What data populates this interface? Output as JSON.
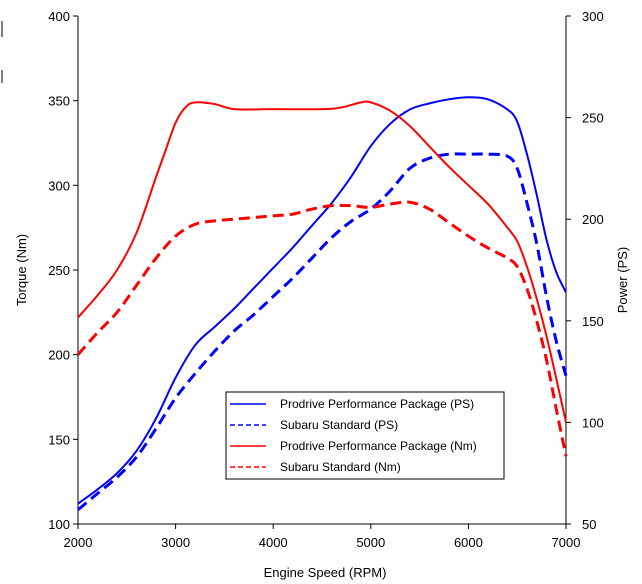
{
  "chart_data": {
    "type": "line",
    "xlabel": "Engine Speed (RPM)",
    "ylabel": "Torque (Nm)",
    "y2label": "Power (PS)",
    "xlim": [
      2000,
      7000
    ],
    "ylim": [
      100,
      400
    ],
    "y2lim": [
      50,
      300
    ],
    "x_ticks": [
      "2000",
      "3000",
      "4000",
      "5000",
      "6000",
      "7000"
    ],
    "y_ticks": [
      "100",
      "150",
      "200",
      "250",
      "300",
      "350",
      "400"
    ],
    "y2_ticks": [
      "50",
      "100",
      "150",
      "200",
      "250",
      "300"
    ],
    "grid": false,
    "legend_position": "bottom-center",
    "series": [
      {
        "name": "Prodrive Performance Package (PS)",
        "axis": "right",
        "color": "#0000ff",
        "dash": "solid",
        "points": [
          [
            2000,
            60
          ],
          [
            2200,
            67
          ],
          [
            2400,
            75
          ],
          [
            2600,
            86
          ],
          [
            2800,
            102
          ],
          [
            3000,
            122
          ],
          [
            3200,
            138
          ],
          [
            3400,
            147
          ],
          [
            3600,
            156
          ],
          [
            3800,
            166
          ],
          [
            4000,
            176
          ],
          [
            4200,
            186
          ],
          [
            4400,
            197
          ],
          [
            4600,
            208
          ],
          [
            4800,
            221
          ],
          [
            5000,
            236
          ],
          [
            5200,
            247
          ],
          [
            5400,
            254
          ],
          [
            5600,
            257
          ],
          [
            5800,
            259
          ],
          [
            6000,
            260
          ],
          [
            6200,
            259
          ],
          [
            6400,
            254
          ],
          [
            6500,
            248
          ],
          [
            6600,
            232
          ],
          [
            6700,
            212
          ],
          [
            6800,
            190
          ],
          [
            6900,
            174
          ],
          [
            7000,
            164
          ]
        ]
      },
      {
        "name": "Subaru Standard (PS)",
        "axis": "right",
        "color": "#0000ff",
        "dash": "dashed",
        "points": [
          [
            2000,
            57
          ],
          [
            2200,
            65
          ],
          [
            2400,
            73
          ],
          [
            2600,
            83
          ],
          [
            2800,
            97
          ],
          [
            3000,
            112
          ],
          [
            3200,
            124
          ],
          [
            3400,
            135
          ],
          [
            3600,
            145
          ],
          [
            3800,
            153
          ],
          [
            4000,
            162
          ],
          [
            4200,
            171
          ],
          [
            4400,
            181
          ],
          [
            4600,
            191
          ],
          [
            4800,
            199
          ],
          [
            5000,
            205
          ],
          [
            5200,
            214
          ],
          [
            5400,
            225
          ],
          [
            5600,
            230
          ],
          [
            5800,
            232
          ],
          [
            6000,
            232
          ],
          [
            6200,
            232
          ],
          [
            6400,
            231
          ],
          [
            6500,
            225
          ],
          [
            6600,
            208
          ],
          [
            6700,
            188
          ],
          [
            6800,
            162
          ],
          [
            6900,
            140
          ],
          [
            7000,
            123
          ]
        ]
      },
      {
        "name": "Prodrive Performance Package (Nm)",
        "axis": "left",
        "color": "#ff0000",
        "dash": "solid",
        "points": [
          [
            2000,
            222
          ],
          [
            2200,
            235
          ],
          [
            2400,
            250
          ],
          [
            2600,
            272
          ],
          [
            2800,
            305
          ],
          [
            2900,
            321
          ],
          [
            3000,
            337
          ],
          [
            3100,
            346
          ],
          [
            3200,
            349
          ],
          [
            3400,
            348
          ],
          [
            3600,
            345
          ],
          [
            4000,
            345
          ],
          [
            4500,
            345
          ],
          [
            4700,
            346
          ],
          [
            4900,
            349
          ],
          [
            5000,
            349
          ],
          [
            5200,
            344
          ],
          [
            5400,
            335
          ],
          [
            5600,
            323
          ],
          [
            5800,
            311
          ],
          [
            6000,
            300
          ],
          [
            6200,
            289
          ],
          [
            6400,
            275
          ],
          [
            6500,
            267
          ],
          [
            6600,
            252
          ],
          [
            6700,
            233
          ],
          [
            6800,
            211
          ],
          [
            6900,
            186
          ],
          [
            7000,
            160
          ]
        ]
      },
      {
        "name": "Subaru Standard (Nm)",
        "axis": "left",
        "color": "#ff0000",
        "dash": "dashed",
        "points": [
          [
            2000,
            200
          ],
          [
            2200,
            213
          ],
          [
            2400,
            225
          ],
          [
            2600,
            241
          ],
          [
            2800,
            257
          ],
          [
            3000,
            270
          ],
          [
            3200,
            277
          ],
          [
            3400,
            279
          ],
          [
            3600,
            280
          ],
          [
            3800,
            281
          ],
          [
            4000,
            282
          ],
          [
            4200,
            283
          ],
          [
            4400,
            286
          ],
          [
            4600,
            288
          ],
          [
            4800,
            288
          ],
          [
            5000,
            287
          ],
          [
            5200,
            289
          ],
          [
            5400,
            290
          ],
          [
            5600,
            286
          ],
          [
            5800,
            278
          ],
          [
            6000,
            270
          ],
          [
            6200,
            263
          ],
          [
            6400,
            257
          ],
          [
            6500,
            252
          ],
          [
            6600,
            239
          ],
          [
            6700,
            220
          ],
          [
            6800,
            197
          ],
          [
            6900,
            168
          ],
          [
            7000,
            140
          ]
        ]
      }
    ]
  }
}
